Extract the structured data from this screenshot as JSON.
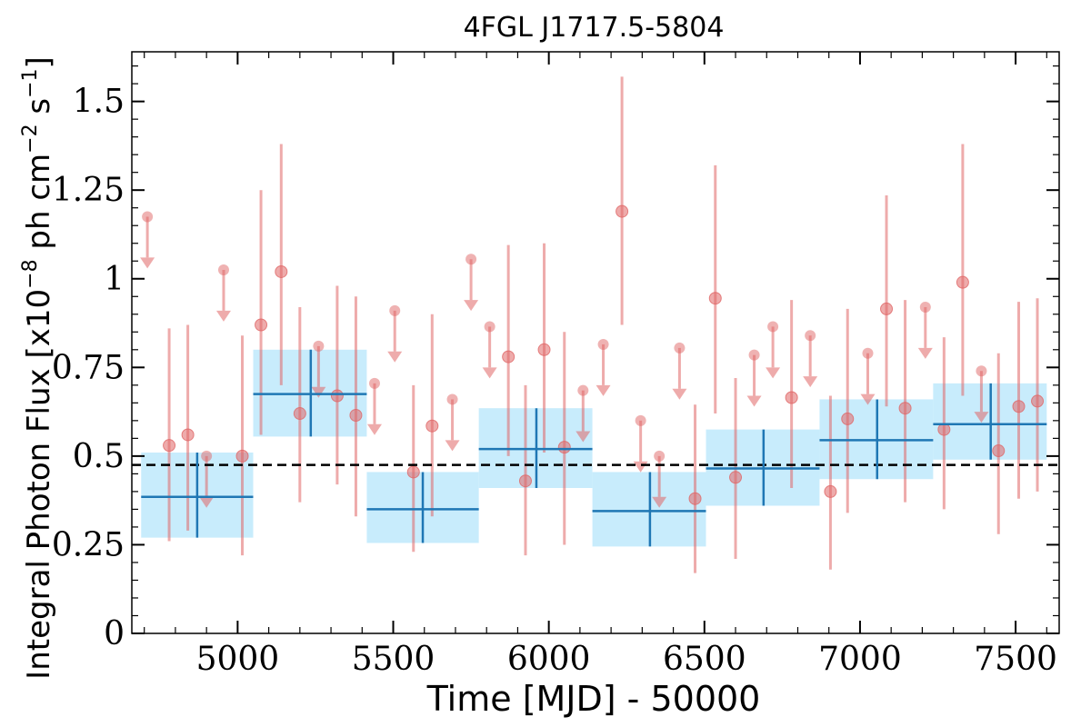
{
  "chart_data": {
    "type": "scatter",
    "title": "4FGL J1717.5-5804",
    "xlabel": "Time [MJD] - 50000",
    "ylabel_base": "Integral Photon Flux [x10",
    "ylabel_exp1": "−8",
    "ylabel_mid": " ph cm",
    "ylabel_exp2": "−2",
    "ylabel_mid2": " s",
    "ylabel_exp3": "−1",
    "ylabel_end": "]",
    "xlim": [
      4660,
      7640
    ],
    "ylim": [
      0,
      1.64
    ],
    "xticks": [
      {
        "value": 5000,
        "label": "5000"
      },
      {
        "value": 5500,
        "label": "5500"
      },
      {
        "value": 6000,
        "label": "6000"
      },
      {
        "value": 6500,
        "label": "6500"
      },
      {
        "value": 7000,
        "label": "7000"
      },
      {
        "value": 7500,
        "label": "7500"
      }
    ],
    "yticks": [
      {
        "value": 0,
        "label": "0"
      },
      {
        "value": 0.25,
        "label": "0.25"
      },
      {
        "value": 0.5,
        "label": "0.5"
      },
      {
        "value": 0.75,
        "label": "0.75"
      },
      {
        "value": 1.0,
        "label": "1"
      },
      {
        "value": 1.25,
        "label": "1.25"
      },
      {
        "value": 1.5,
        "label": "1.5"
      }
    ],
    "mean_flux": 0.475,
    "colors": {
      "points": "#e06666",
      "bins": "#1f77b4",
      "bin_fill": "#c8ecfc",
      "mean_line": "#000000"
    },
    "bins": [
      {
        "x0": 4690,
        "x1": 5050,
        "xc": 4870,
        "y": 0.385,
        "ylo": 0.27,
        "yhi": 0.51
      },
      {
        "x0": 5050,
        "x1": 5415,
        "xc": 5235,
        "y": 0.675,
        "ylo": 0.555,
        "yhi": 0.8
      },
      {
        "x0": 5415,
        "x1": 5775,
        "xc": 5595,
        "y": 0.35,
        "ylo": 0.255,
        "yhi": 0.455
      },
      {
        "x0": 5775,
        "x1": 6140,
        "xc": 5960,
        "y": 0.52,
        "ylo": 0.41,
        "yhi": 0.635
      },
      {
        "x0": 6140,
        "x1": 6505,
        "xc": 6325,
        "y": 0.345,
        "ylo": 0.245,
        "yhi": 0.455
      },
      {
        "x0": 6505,
        "x1": 6870,
        "xc": 6690,
        "y": 0.465,
        "ylo": 0.36,
        "yhi": 0.575
      },
      {
        "x0": 6870,
        "x1": 7235,
        "xc": 7055,
        "y": 0.545,
        "ylo": 0.435,
        "yhi": 0.66
      },
      {
        "x0": 7235,
        "x1": 7600,
        "xc": 7420,
        "y": 0.59,
        "ylo": 0.49,
        "yhi": 0.705
      }
    ],
    "detections": [
      {
        "x": 4780,
        "y": 0.53,
        "ylo": 0.26,
        "yhi": 0.86
      },
      {
        "x": 4840,
        "y": 0.56,
        "ylo": 0.29,
        "yhi": 0.87
      },
      {
        "x": 5015,
        "y": 0.5,
        "ylo": 0.22,
        "yhi": 0.84
      },
      {
        "x": 5075,
        "y": 0.87,
        "ylo": 0.56,
        "yhi": 1.25
      },
      {
        "x": 5140,
        "y": 1.02,
        "ylo": 0.7,
        "yhi": 1.38
      },
      {
        "x": 5200,
        "y": 0.62,
        "ylo": 0.37,
        "yhi": 0.92
      },
      {
        "x": 5320,
        "y": 0.67,
        "ylo": 0.42,
        "yhi": 0.98
      },
      {
        "x": 5380,
        "y": 0.615,
        "ylo": 0.33,
        "yhi": 0.95
      },
      {
        "x": 5565,
        "y": 0.455,
        "ylo": 0.23,
        "yhi": 0.7
      },
      {
        "x": 5625,
        "y": 0.585,
        "ylo": 0.33,
        "yhi": 0.9
      },
      {
        "x": 5870,
        "y": 0.78,
        "ylo": 0.5,
        "yhi": 1.095
      },
      {
        "x": 5925,
        "y": 0.43,
        "ylo": 0.22,
        "yhi": 0.7
      },
      {
        "x": 5985,
        "y": 0.8,
        "ylo": 0.51,
        "yhi": 1.1
      },
      {
        "x": 6050,
        "y": 0.525,
        "ylo": 0.25,
        "yhi": 0.85
      },
      {
        "x": 6235,
        "y": 1.19,
        "ylo": 0.87,
        "yhi": 1.57
      },
      {
        "x": 6470,
        "y": 0.38,
        "ylo": 0.17,
        "yhi": 0.645
      },
      {
        "x": 6535,
        "y": 0.945,
        "ylo": 0.62,
        "yhi": 1.32
      },
      {
        "x": 6600,
        "y": 0.44,
        "ylo": 0.21,
        "yhi": 0.72
      },
      {
        "x": 6780,
        "y": 0.665,
        "ylo": 0.41,
        "yhi": 0.94
      },
      {
        "x": 6905,
        "y": 0.4,
        "ylo": 0.18,
        "yhi": 0.67
      },
      {
        "x": 6960,
        "y": 0.605,
        "ylo": 0.34,
        "yhi": 0.915
      },
      {
        "x": 7085,
        "y": 0.915,
        "ylo": 0.64,
        "yhi": 1.235
      },
      {
        "x": 7145,
        "y": 0.635,
        "ylo": 0.37,
        "yhi": 0.94
      },
      {
        "x": 7270,
        "y": 0.575,
        "ylo": 0.35,
        "yhi": 0.835
      },
      {
        "x": 7330,
        "y": 0.99,
        "ylo": 0.67,
        "yhi": 1.38
      },
      {
        "x": 7445,
        "y": 0.515,
        "ylo": 0.28,
        "yhi": 0.79
      },
      {
        "x": 7510,
        "y": 0.64,
        "ylo": 0.38,
        "yhi": 0.935
      },
      {
        "x": 7570,
        "y": 0.655,
        "ylo": 0.4,
        "yhi": 0.945
      }
    ],
    "upper_limits": [
      {
        "x": 4710,
        "y": 1.175
      },
      {
        "x": 4900,
        "y": 0.5
      },
      {
        "x": 4955,
        "y": 1.025
      },
      {
        "x": 5260,
        "y": 0.81
      },
      {
        "x": 5440,
        "y": 0.705
      },
      {
        "x": 5505,
        "y": 0.91
      },
      {
        "x": 5690,
        "y": 0.66
      },
      {
        "x": 5750,
        "y": 1.055
      },
      {
        "x": 5810,
        "y": 0.865
      },
      {
        "x": 6110,
        "y": 0.685
      },
      {
        "x": 6175,
        "y": 0.815
      },
      {
        "x": 6295,
        "y": 0.6
      },
      {
        "x": 6355,
        "y": 0.5
      },
      {
        "x": 6420,
        "y": 0.805
      },
      {
        "x": 6660,
        "y": 0.785
      },
      {
        "x": 6720,
        "y": 0.865
      },
      {
        "x": 6840,
        "y": 0.84
      },
      {
        "x": 7025,
        "y": 0.79
      },
      {
        "x": 7210,
        "y": 0.92
      },
      {
        "x": 7390,
        "y": 0.74
      }
    ]
  }
}
